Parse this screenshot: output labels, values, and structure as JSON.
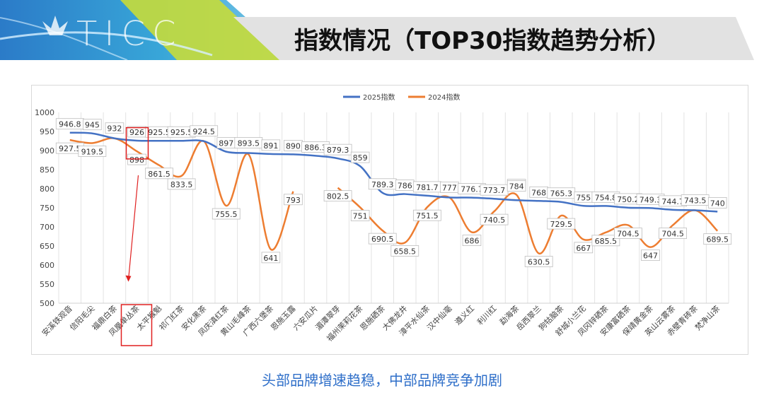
{
  "header": {
    "logo_text": "TICC",
    "title": "指数情况（TOP30指数趋势分析）"
  },
  "subtitle": "头部品牌增速趋稳，中部品牌竞争加剧",
  "colors": {
    "series_2025": "#4472c4",
    "series_2024": "#ed7d31",
    "highlight": "#e02020",
    "subtitle": "#2f6fc9"
  },
  "chart_data": {
    "type": "line",
    "title": "",
    "xlabel": "",
    "ylabel": "",
    "ylim": [
      500,
      1000
    ],
    "yticks": [
      500,
      550,
      600,
      650,
      700,
      750,
      800,
      850,
      900,
      950,
      1000
    ],
    "grid": "vertical",
    "legend_position": "top",
    "categories": [
      "安溪铁观音",
      "信阳毛尖",
      "福鼎白茶",
      "凤凰单丛茶",
      "太平猴魁",
      "祁门红茶",
      "安化黑茶",
      "凤庆滇红茶",
      "黄山毛峰茶",
      "广西六堡茶",
      "恩施玉露",
      "六安瓜片",
      "湄潭翠芽",
      "福州茉莉花茶",
      "恩施硒茶",
      "大佛龙井",
      "漳平水仙茶",
      "汉中仙毫",
      "遵义红",
      "利川红",
      "勐海茶",
      "岳西翠兰",
      "狗牯脑茶",
      "舒城小兰花",
      "凤冈锌硒茶",
      "安康富硒茶",
      "保靖黄金茶",
      "英山云雾茶",
      "赤壁青砖茶",
      "梵净山茶"
    ],
    "series": [
      {
        "name": "2025指数",
        "values": [
          946.8,
          945,
          932,
          926,
          925.5,
          925.5,
          924.5,
          897,
          893.5,
          891,
          890,
          886.3,
          879.3,
          859,
          789.3,
          786,
          781.7,
          777,
          776.7,
          773.7,
          770,
          768,
          765.3,
          755,
          754.8,
          750.2,
          749.3,
          744.7,
          743.5,
          740
        ],
        "labels": [
          "946.8",
          "945",
          "932",
          "926",
          "925.5",
          "925.5",
          "924.5",
          "897",
          "893.5",
          "891",
          "890",
          "886.3",
          "879.3",
          "859",
          "789.3",
          "786",
          "781.7",
          "777",
          "776.7",
          "773.7",
          "770",
          "768",
          "765.3",
          "755",
          "754.8",
          "750.2",
          "749.3",
          "744.7",
          "743.5",
          "740"
        ]
      },
      {
        "name": "2024指数",
        "values": [
          927.5,
          919.5,
          932,
          898,
          861.5,
          833.5,
          924.5,
          755.5,
          890,
          641,
          793,
          null,
          802.5,
          751,
          690.5,
          658.5,
          751.5,
          777,
          686,
          740.5,
          784,
          630.5,
          729.5,
          667,
          685.5,
          704.5,
          647,
          704.5,
          743.5,
          689.5
        ],
        "labels": [
          "927.5",
          "919.5",
          "",
          "898",
          "861.5",
          "833.5",
          "",
          "755.5",
          "",
          "641",
          "793",
          "",
          "802.5",
          "751",
          "690.5",
          "658.5",
          "751.5",
          "",
          "686",
          "740.5",
          "784",
          "630.5",
          "729.5",
          "667",
          "685.5",
          "704.5",
          "647",
          "704.5",
          "",
          "689.5"
        ]
      }
    ],
    "highlight_category": "凤凰单丛茶"
  }
}
